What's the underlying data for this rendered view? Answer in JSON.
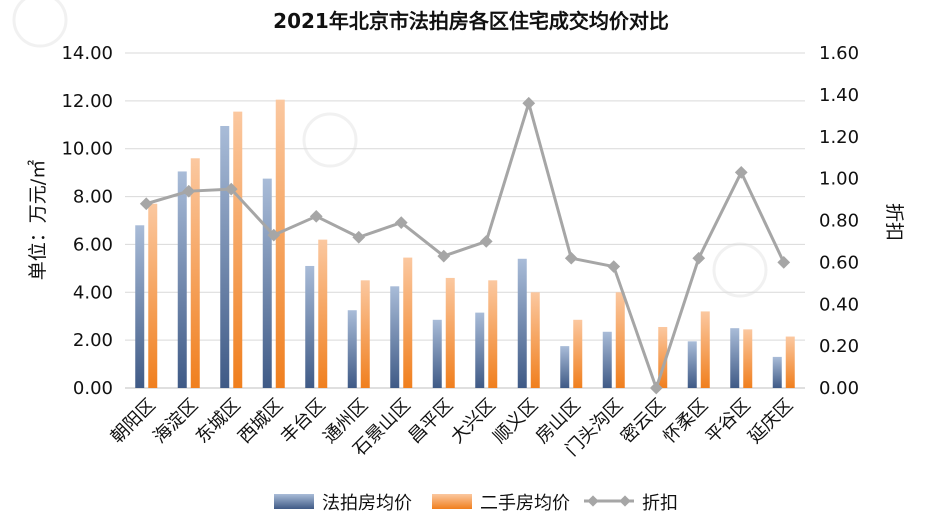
{
  "chart_data": {
    "type": "bar",
    "title": "2021年北京市法拍房各区住宅成交均价对比",
    "ylabel": "单位：万元/㎡",
    "y2label": "折扣",
    "ylim": [
      0,
      14
    ],
    "y2lim": [
      0,
      1.6
    ],
    "yticks": [
      "0.00",
      "2.00",
      "4.00",
      "6.00",
      "8.00",
      "10.00",
      "12.00",
      "14.00"
    ],
    "y2ticks": [
      "0.00",
      "0.20",
      "0.40",
      "0.60",
      "0.80",
      "1.00",
      "1.20",
      "1.40",
      "1.60"
    ],
    "grid": true,
    "legend_position": "bottom",
    "categories": [
      "朝阳区",
      "海淀区",
      "东城区",
      "西城区",
      "丰台区",
      "通州区",
      "石景山区",
      "昌平区",
      "大兴区",
      "顺义区",
      "房山区",
      "门头沟区",
      "密云区",
      "怀柔区",
      "平谷区",
      "延庆区"
    ],
    "series": [
      {
        "name": "法拍房均价",
        "type": "bar",
        "axis": "left",
        "color_top": "#a9bcd8",
        "color_bottom": "#3f5a86",
        "values": [
          6.8,
          9.05,
          10.95,
          8.75,
          5.1,
          3.25,
          4.25,
          2.85,
          3.15,
          5.4,
          1.75,
          2.35,
          0,
          1.95,
          2.5,
          1.3
        ]
      },
      {
        "name": "二手房均价",
        "type": "bar",
        "axis": "left",
        "color_top": "#fbc8a0",
        "color_bottom": "#f07f1e",
        "values": [
          7.7,
          9.6,
          11.55,
          12.05,
          6.2,
          4.5,
          5.45,
          4.6,
          4.5,
          4.0,
          2.85,
          4.0,
          2.55,
          3.2,
          2.45,
          2.15
        ]
      },
      {
        "name": "折扣",
        "type": "line",
        "axis": "right",
        "color": "#a6a6a6",
        "values": [
          0.88,
          0.94,
          0.95,
          0.73,
          0.82,
          0.72,
          0.79,
          0.63,
          0.7,
          1.36,
          0.62,
          0.58,
          0.0,
          0.62,
          1.03,
          0.6
        ]
      }
    ]
  },
  "legend": {
    "item1": "法拍房均价",
    "item2": "二手房均价",
    "item3": "折扣"
  }
}
